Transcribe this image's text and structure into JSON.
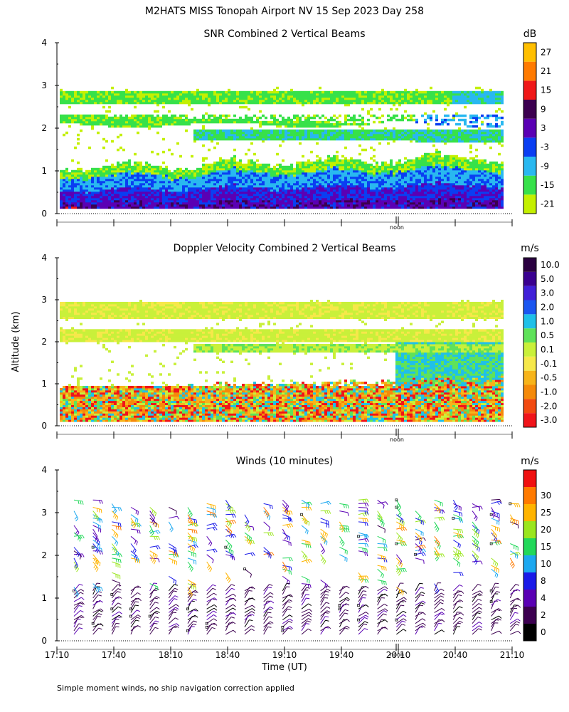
{
  "figure": {
    "title": "M2HATS MISS Tonopah Airport NV  15 Sep 2023 Day 258",
    "ylabel_shared": "Altitude (km)",
    "footnote": "Simple moment winds, no ship navigation correction applied",
    "noon_label": "noon",
    "xlabel": "Time (UT)"
  },
  "colors": {
    "snr_scale": [
      "#c4f000",
      "#37e14a",
      "#29b8f0",
      "#0a3ef2",
      "#5a00b4",
      "#3c0050",
      "#f01818",
      "#ff7a00",
      "#ffbf00"
    ],
    "doppler_scale": [
      "#f0141a",
      "#f24a10",
      "#f58a0a",
      "#f7b41a",
      "#f6e84a",
      "#c9f03a",
      "#5fe25a",
      "#1fc0e8",
      "#1b56f0",
      "#4020d8",
      "#3a0090",
      "#2a0040"
    ],
    "wind_scale": [
      "#000000",
      "#3c0050",
      "#5a00b4",
      "#1a1ae8",
      "#1ca8f0",
      "#22d85a",
      "#9ae61e",
      "#ffb400",
      "#ff7a00",
      "#f01010"
    ]
  },
  "chart_data": [
    {
      "type": "heatmap",
      "title": "SNR Combined 2 Vertical Beams",
      "units": "dB",
      "colorbar_ticks": [
        "-21",
        "-15",
        "-9",
        "-3",
        "3",
        "9",
        "15",
        "21",
        "27"
      ],
      "ylim": [
        0,
        4
      ],
      "yticks": [
        "0",
        "1",
        "2",
        "3",
        "4"
      ],
      "x_range_minutes_utc": [
        1030,
        1270
      ],
      "layers": [
        {
          "name": "boundary layer",
          "bottom_km": 0.15,
          "top_km_start": 1.1,
          "top_km_end": 1.3,
          "value_db_near_ground": 9,
          "value_db_top": -12
        },
        {
          "name": "upper layer",
          "bottom_km": 2.55,
          "top_km": 2.85,
          "value_db": -18
        },
        {
          "name": "middle layer",
          "bottom_km": 2.0,
          "top_km": 2.3,
          "value_db": -15
        }
      ]
    },
    {
      "type": "heatmap",
      "title": "Doppler Velocity Combined 2 Vertical Beams",
      "units": "m/s",
      "colorbar_ticks": [
        "-3.0",
        "-2.0",
        "-1.0",
        "-0.5",
        "-0.1",
        "0.1",
        "0.5",
        "1.0",
        "2.0",
        "3.0",
        "5.0",
        "10.0"
      ],
      "ylim": [
        0,
        4
      ],
      "yticks": [
        "0",
        "1",
        "2",
        "3",
        "4"
      ],
      "x_range_minutes_utc": [
        1030,
        1270
      ],
      "layers": [
        {
          "name": "boundary layer",
          "bottom_km": 0.1,
          "top_km": 1.0,
          "value_ms": -0.5
        },
        {
          "name": "upper layer",
          "bottom_km": 2.5,
          "top_km": 2.9,
          "value_ms": 0.0
        }
      ]
    },
    {
      "type": "scatter",
      "title": "Winds (10 minutes)",
      "units": "m/s",
      "colorbar_ticks": [
        "0",
        "2",
        "4",
        "8",
        "10",
        "15",
        "20",
        "25",
        "30"
      ],
      "ylim": [
        0,
        4
      ],
      "yticks": [
        "0",
        "1",
        "2",
        "3",
        "4"
      ],
      "xlim_minutes_utc": [
        1030,
        1270
      ],
      "xticks": [
        "17:10",
        "17:40",
        "18:10",
        "18:40",
        "19:10",
        "19:40",
        "20:10",
        "20:40",
        "21:10"
      ],
      "xtick_minutes": [
        1030,
        1060,
        1090,
        1120,
        1150,
        1180,
        1210,
        1240,
        1270
      ],
      "noon_minute": 1210,
      "profile_start_minute": 1030,
      "profile_interval_minutes": 10,
      "profile_count": 24,
      "note": "wind barbs at ~0.1-3.2 km, mostly light (2-4 m/s) below 1.2 km, stronger (15-30 m/s) aloft near 2-3 km"
    }
  ]
}
